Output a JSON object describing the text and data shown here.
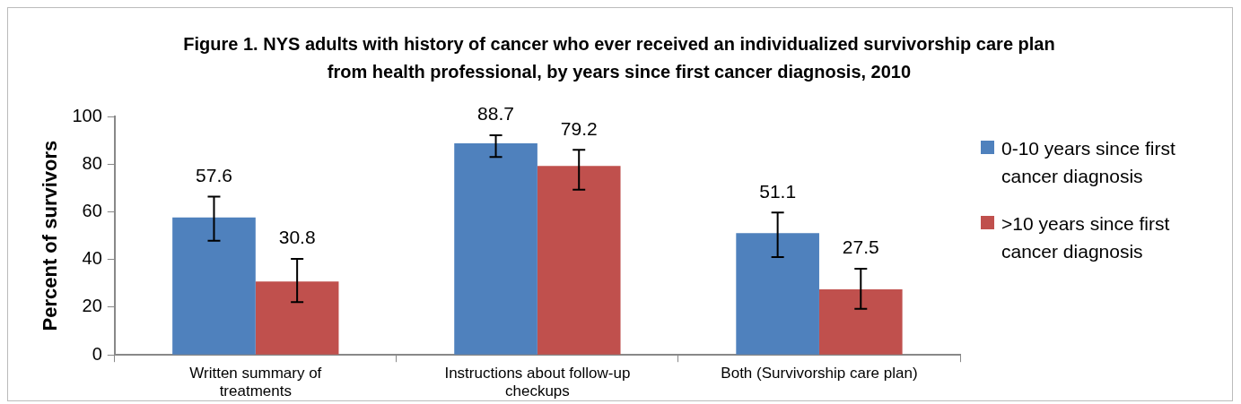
{
  "chart_data": {
    "type": "bar",
    "title": "Figure 1. NYS adults with history of cancer who ever received an individualized survivorship care plan from health professional, by years since first cancer diagnosis, 2010",
    "ylabel": "Percent of survivors",
    "categories": [
      "Written summary of treatments",
      "Instructions about follow-up checkups",
      "Both (Survivorship care plan)"
    ],
    "series": [
      {
        "name": "0-10 years since first cancer diagnosis",
        "color": "#4f81bd",
        "values": [
          57.6,
          88.7,
          51.1
        ],
        "errors": [
          [
            47.9,
            66.4
          ],
          [
            83.0,
            92.1
          ],
          [
            41.0,
            59.7
          ]
        ]
      },
      {
        "name": ">10 years since first cancer diagnosis",
        "color": "#c0504d",
        "values": [
          30.8,
          79.2,
          27.5
        ],
        "errors": [
          [
            22.1,
            40.3
          ],
          [
            69.3,
            86.0
          ],
          [
            19.3,
            36.1
          ]
        ]
      }
    ],
    "ylim": [
      0,
      100
    ],
    "yticks": [
      0,
      20,
      40,
      60,
      80,
      100
    ],
    "data_labels": true,
    "grid": false,
    "legend": "right"
  }
}
